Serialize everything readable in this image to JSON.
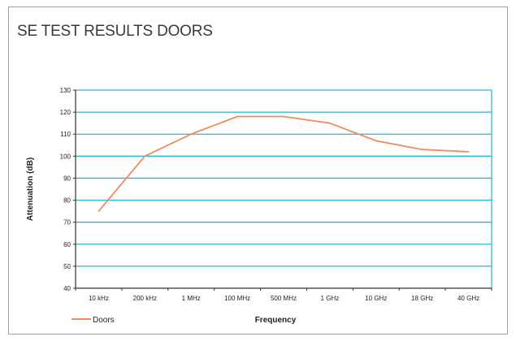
{
  "header": {
    "title": "SE TEST RESULTS DOORS"
  },
  "colors": {
    "series": "#f28a5a",
    "grid": "#2db2d9",
    "axis": "#333333"
  },
  "chart_data": {
    "type": "line",
    "title": "",
    "xlabel": "Frequency",
    "ylabel": "Attenuation (dB)",
    "categories": [
      "10 kHz",
      "200 kHz",
      "1 MHz",
      "100 MHz",
      "500 MHz",
      "1 GHz",
      "10 GHz",
      "18 GHz",
      "40 GHz"
    ],
    "series": [
      {
        "name": "Doors",
        "values": [
          75,
          100,
          110,
          118,
          118,
          115,
          107,
          103,
          102
        ]
      }
    ],
    "ylim": [
      40,
      130
    ],
    "yticks": [
      40,
      50,
      60,
      70,
      80,
      90,
      100,
      110,
      120,
      130
    ],
    "grid": true,
    "legend": "bottom-left"
  }
}
